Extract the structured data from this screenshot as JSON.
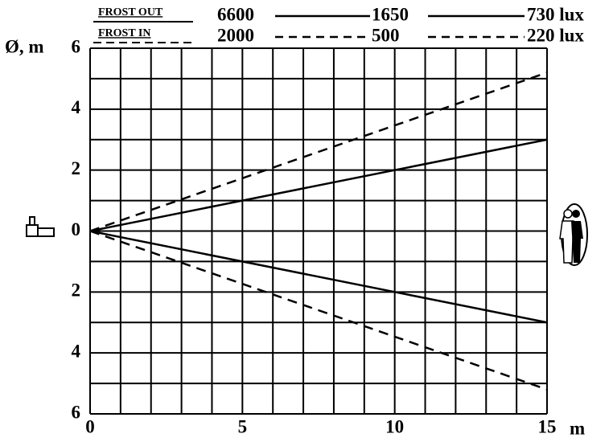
{
  "chart_data": {
    "type": "line",
    "y_axis_label": "Ø, m",
    "x_axis_label": "m",
    "xlim": [
      0,
      15
    ],
    "ylim": [
      -6,
      6
    ],
    "xticks": [
      0,
      5,
      10,
      15
    ],
    "yticks": [
      {
        "value": 6,
        "label": "6"
      },
      {
        "value": 4,
        "label": "4"
      },
      {
        "value": 2,
        "label": "2"
      },
      {
        "value": 0,
        "label": "0"
      },
      {
        "value": -2,
        "label": "2"
      },
      {
        "value": -4,
        "label": "4"
      },
      {
        "value": -6,
        "label": "6"
      }
    ],
    "xgrid": [
      0,
      1,
      2,
      3,
      4,
      5,
      6,
      7,
      8,
      9,
      10,
      11,
      12,
      13,
      14,
      15
    ],
    "ygrid": [
      -6,
      -5,
      -4,
      -3,
      -2,
      -1,
      0,
      1,
      2,
      3,
      4,
      5,
      6
    ],
    "series": [
      {
        "name": "FROST OUT",
        "dashed": false,
        "color": "#000000",
        "x": [
          0,
          15
        ],
        "values": [
          0,
          3
        ],
        "lower_values": [
          0,
          -3
        ],
        "lux_labels": [
          "6600",
          "1650",
          "730 lux"
        ]
      },
      {
        "name": "FROST IN",
        "dashed": true,
        "color": "#000000",
        "x": [
          0,
          15
        ],
        "values": [
          0,
          5.2
        ],
        "lower_values": [
          0,
          -5.2
        ],
        "lux_labels": [
          "2000",
          "500",
          "220 lux"
        ]
      }
    ]
  }
}
